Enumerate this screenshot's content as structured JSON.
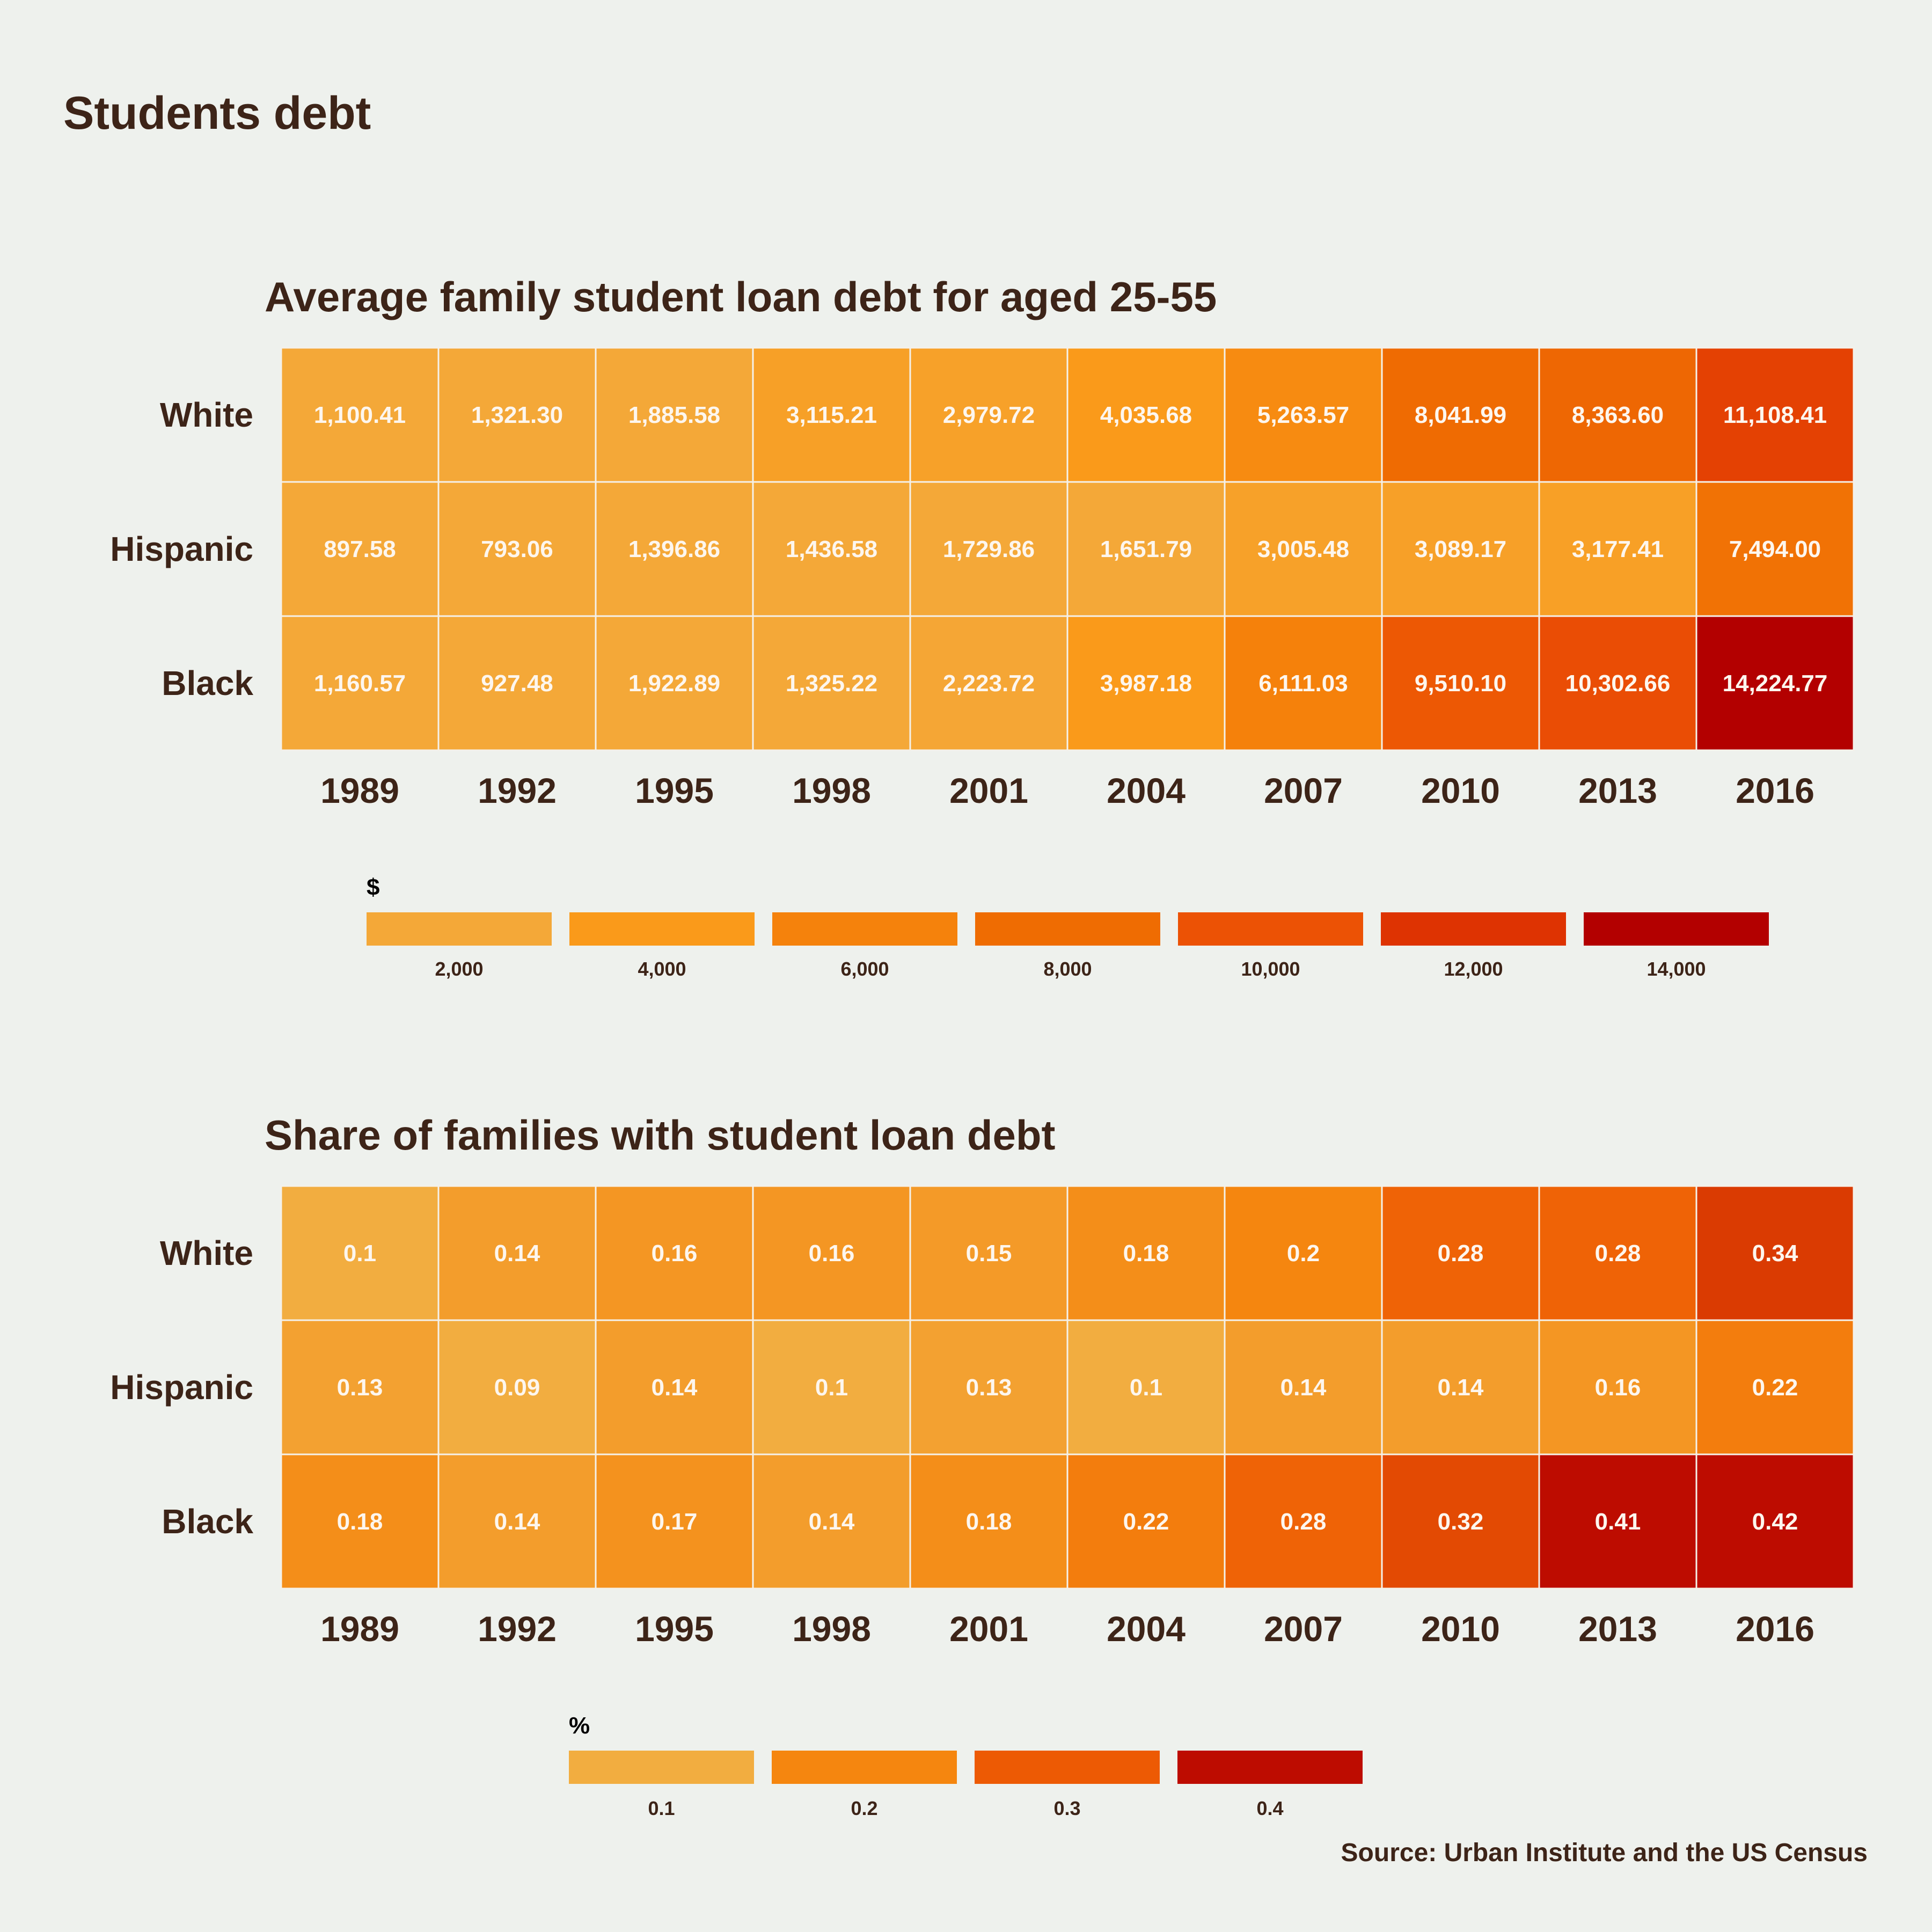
{
  "page": {
    "title": "Students debt",
    "source": "Source: Urban Institute and the US Census"
  },
  "colors": {
    "background": "#eef1ed",
    "text": "#3d2418",
    "cell_border": "#f4f1ea",
    "scale_low": "#f2ad40",
    "scale_high": "#b30000"
  },
  "chart_data": [
    {
      "type": "heatmap",
      "title": "Average family student loan debt for aged 25-55",
      "x": [
        "1989",
        "1992",
        "1995",
        "1998",
        "2001",
        "2004",
        "2007",
        "2010",
        "2013",
        "2016"
      ],
      "y": [
        "White",
        "Hispanic",
        "Black"
      ],
      "values": [
        [
          1100.41,
          1321.3,
          1885.58,
          3115.21,
          2979.72,
          4035.68,
          5263.57,
          8041.99,
          8363.6,
          11108.41
        ],
        [
          897.58,
          793.06,
          1396.86,
          1436.58,
          1729.86,
          1651.79,
          3005.48,
          3089.17,
          3177.41,
          7494.0
        ],
        [
          1160.57,
          927.48,
          1922.89,
          1325.22,
          2223.72,
          3987.18,
          6111.03,
          9510.1,
          10302.66,
          14224.77
        ]
      ],
      "labels": [
        [
          "1,100.41",
          "1,321.30",
          "1,885.58",
          "3,115.21",
          "2,979.72",
          "4,035.68",
          "5,263.57",
          "8,041.99",
          "8,363.60",
          "11,108.41"
        ],
        [
          "897.58",
          "793.06",
          "1,396.86",
          "1,436.58",
          "1,729.86",
          "1,651.79",
          "3,005.48",
          "3,089.17",
          "3,177.41",
          "7,494.00"
        ],
        [
          "1,160.57",
          "927.48",
          "1,922.89",
          "1,325.22",
          "2,223.72",
          "3,987.18",
          "6,111.03",
          "9,510.10",
          "10,302.66",
          "14,224.77"
        ]
      ],
      "legend": {
        "title": "$",
        "position": "bottom",
        "breaks": [
          "2,000",
          "4,000",
          "6,000",
          "8,000",
          "10,000",
          "12,000",
          "14,000"
        ],
        "colors": [
          "#f4a838",
          "#fa9a1a",
          "#f5820c",
          "#ef6c02",
          "#ec5205",
          "#de3302",
          "#b30000"
        ]
      }
    },
    {
      "type": "heatmap",
      "title": "Share of families with student loan debt",
      "x": [
        "1989",
        "1992",
        "1995",
        "1998",
        "2001",
        "2004",
        "2007",
        "2010",
        "2013",
        "2016"
      ],
      "y": [
        "White",
        "Hispanic",
        "Black"
      ],
      "values": [
        [
          0.1,
          0.14,
          0.16,
          0.16,
          0.15,
          0.18,
          0.2,
          0.28,
          0.28,
          0.34
        ],
        [
          0.13,
          0.09,
          0.14,
          0.1,
          0.13,
          0.1,
          0.14,
          0.14,
          0.16,
          0.22
        ],
        [
          0.18,
          0.14,
          0.17,
          0.14,
          0.18,
          0.22,
          0.28,
          0.32,
          0.41,
          0.42
        ]
      ],
      "labels": [
        [
          "0.1",
          "0.14",
          "0.16",
          "0.16",
          "0.15",
          "0.18",
          "0.2",
          "0.28",
          "0.28",
          "0.34"
        ],
        [
          "0.13",
          "0.09",
          "0.14",
          "0.1",
          "0.13",
          "0.1",
          "0.14",
          "0.14",
          "0.16",
          "0.22"
        ],
        [
          "0.18",
          "0.14",
          "0.17",
          "0.14",
          "0.18",
          "0.22",
          "0.28",
          "0.32",
          "0.41",
          "0.42"
        ]
      ],
      "legend": {
        "title": "%",
        "position": "bottom",
        "breaks": [
          "0.1",
          "0.2",
          "0.3",
          "0.4"
        ],
        "colors": [
          "#f2ad40",
          "#f5860f",
          "#ed5a04",
          "#bd0c00"
        ]
      }
    }
  ]
}
